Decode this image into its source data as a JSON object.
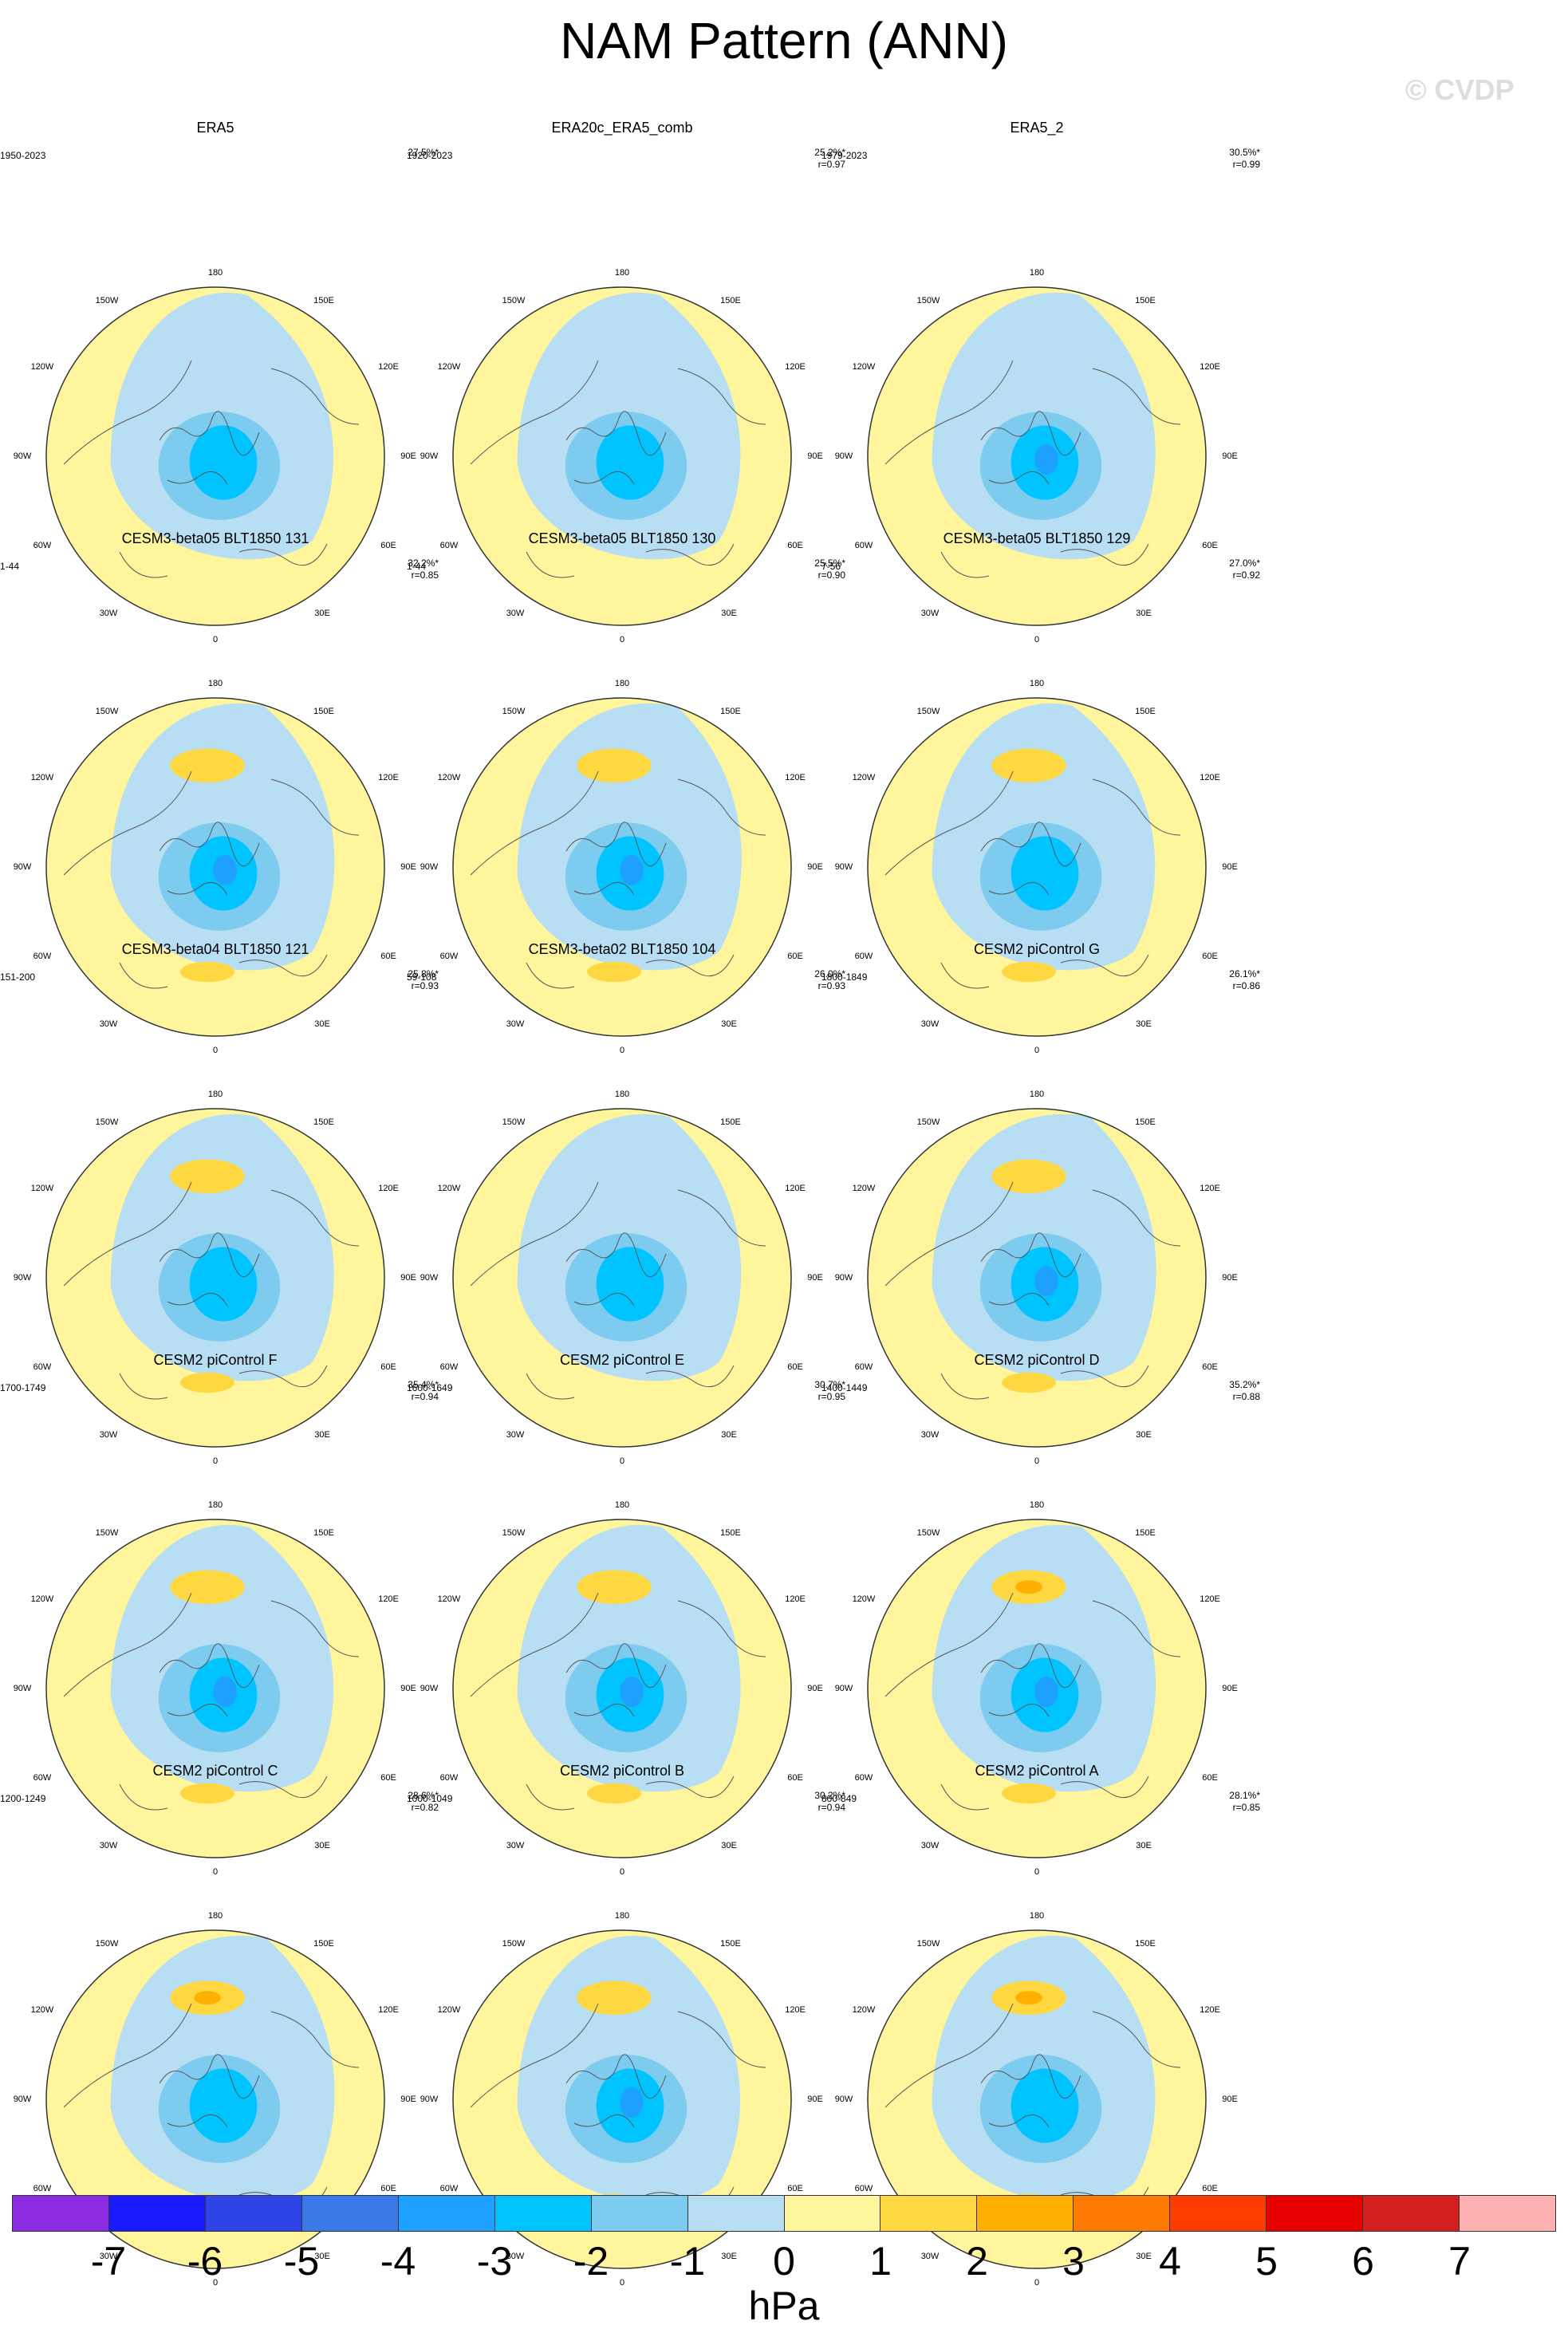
{
  "title": "NAM Pattern (ANN)",
  "watermark": "© CVDP",
  "colors": {
    "ocean_line": "#555555",
    "circle_edge": "#333333",
    "palette": [
      "#8b2be2",
      "#1a1aff",
      "#2e44e6",
      "#3a7ae8",
      "#1ea0ff",
      "#00c4ff",
      "#7ecbf0",
      "#b8def3",
      "#fff59d",
      "#ffd740",
      "#ffb000",
      "#ff7a00",
      "#ff3c00",
      "#e80000",
      "#d41f1f",
      "#ffb0b0"
    ]
  },
  "lon_labels": {
    "top": "180",
    "bottom": "0",
    "left": "90W",
    "right": "90E",
    "upper_left": "150W",
    "upper_right": "150E",
    "mid_upper_left": "120W",
    "mid_upper_right": "120E",
    "mid_lower_left": "60W",
    "mid_lower_right": "60E",
    "lower_left": "30W",
    "lower_right": "30E"
  },
  "colorbar": {
    "labels": [
      "-7",
      "-6",
      "-5",
      "-4",
      "-3",
      "-2",
      "-1",
      "0",
      "1",
      "2",
      "3",
      "4",
      "5",
      "6",
      "7"
    ],
    "units": "hPa"
  },
  "chart_data": {
    "type": "heatmap",
    "title": "NAM Pattern (ANN)",
    "units": "hPa",
    "levels": [
      -7,
      -6,
      -5,
      -4,
      -3,
      -2,
      -1,
      0,
      1,
      2,
      3,
      4,
      5,
      6,
      7
    ],
    "projection": "north polar stereographic",
    "panels": [
      {
        "name": "ERA5",
        "years": "1950-2023",
        "pct": "27.5%*",
        "r": "",
        "neg_core": -2.5,
        "pos_max": 0.5
      },
      {
        "name": "ERA20c_ERA5_comb",
        "years": "1920-2023",
        "pct": "25.2%*",
        "r": "r=0.97",
        "neg_core": -2.5,
        "pos_max": 0.5
      },
      {
        "name": "ERA5_2",
        "years": "1979-2023",
        "pct": "30.5%*",
        "r": "r=0.99",
        "neg_core": -3.5,
        "pos_max": 0.5
      },
      {
        "name": "CESM3-beta05 BLT1850 131",
        "years": "1-44",
        "pct": "32.2%*",
        "r": "r=0.85",
        "neg_core": -3.5,
        "pos_max": 1.5
      },
      {
        "name": "CESM3-beta05 BLT1850 130",
        "years": "1-44",
        "pct": "25.5%*",
        "r": "r=0.90",
        "neg_core": -3.5,
        "pos_max": 1.5
      },
      {
        "name": "CESM3-beta05 BLT1850 129",
        "years": "7-56",
        "pct": "27.0%*",
        "r": "r=0.92",
        "neg_core": -2.5,
        "pos_max": 1.5
      },
      {
        "name": "CESM3-beta04 BLT1850 121",
        "years": "151-200",
        "pct": "25.8%*",
        "r": "r=0.93",
        "neg_core": -2.5,
        "pos_max": 1.5
      },
      {
        "name": "CESM3-beta02 BLT1850 104",
        "years": "59-108",
        "pct": "26.0%*",
        "r": "r=0.93",
        "neg_core": -2.5,
        "pos_max": 0.5
      },
      {
        "name": "CESM2 piControl G",
        "years": "1800-1849",
        "pct": "26.1%*",
        "r": "r=0.86",
        "neg_core": -3.5,
        "pos_max": 1.5
      },
      {
        "name": "CESM2 piControl F",
        "years": "1700-1749",
        "pct": "35.4%*",
        "r": "r=0.94",
        "neg_core": -3.5,
        "pos_max": 1.5
      },
      {
        "name": "CESM2 piControl E",
        "years": "1600-1649",
        "pct": "30.7%*",
        "r": "r=0.95",
        "neg_core": -3.5,
        "pos_max": 1.5
      },
      {
        "name": "CESM2 piControl D",
        "years": "1400-1449",
        "pct": "35.2%*",
        "r": "r=0.88",
        "neg_core": -3.5,
        "pos_max": 2.5
      },
      {
        "name": "CESM2 piControl C",
        "years": "1200-1249",
        "pct": "28.6%*",
        "r": "r=0.82",
        "neg_core": -2.5,
        "pos_max": 2.5
      },
      {
        "name": "CESM2 piControl B",
        "years": "1000-1049",
        "pct": "30.2%*",
        "r": "r=0.94",
        "neg_core": -3.5,
        "pos_max": 1.5
      },
      {
        "name": "CESM2 piControl A",
        "years": "800-849",
        "pct": "28.1%*",
        "r": "r=0.85",
        "neg_core": -2.5,
        "pos_max": 2.5
      }
    ]
  }
}
